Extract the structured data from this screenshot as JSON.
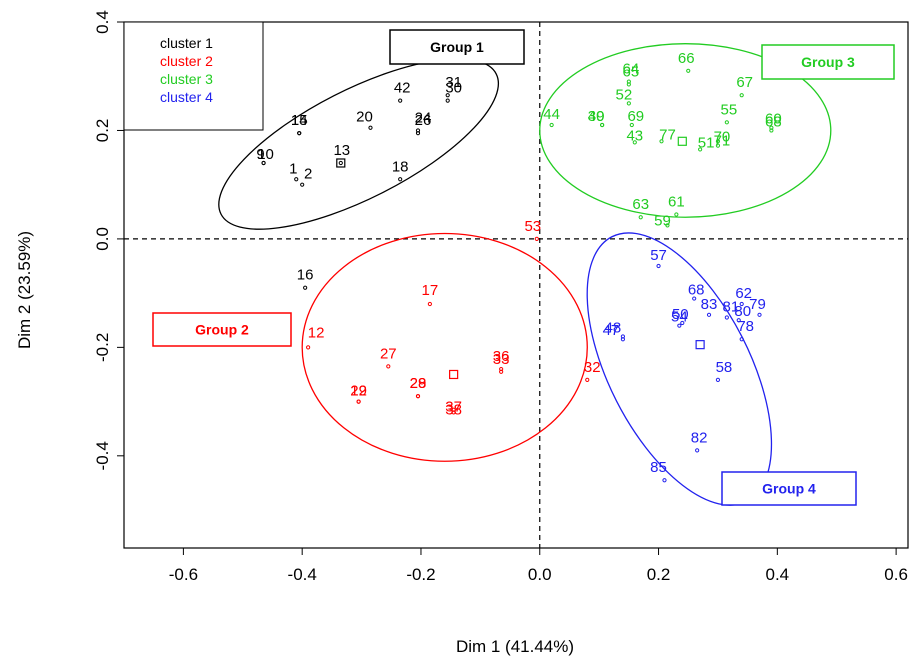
{
  "chart_data": {
    "type": "scatter",
    "xlabel": "Dim 1 (41.44%)",
    "ylabel": "Dim 2 (23.59%)",
    "xlim": [
      -0.7,
      0.62
    ],
    "ylim": [
      -0.57,
      0.4
    ],
    "xticks": [
      -0.6,
      -0.4,
      -0.2,
      0.0,
      0.2,
      0.4,
      0.6
    ],
    "xtick_labels": [
      "-0.6",
      "-0.4",
      "-0.2",
      "0.0",
      "0.2",
      "0.4",
      "0.6"
    ],
    "yticks": [
      -0.4,
      -0.2,
      0.0,
      0.2,
      0.4
    ],
    "ytick_labels": [
      "-0.4",
      "-0.2",
      "0.0",
      "0.2",
      "0.4"
    ],
    "reference_lines": {
      "x": 0.0,
      "y": 0.0
    },
    "legend": {
      "placement": "top-left",
      "entries": [
        {
          "label": "cluster 1",
          "color": "#000000"
        },
        {
          "label": "cluster 2",
          "color": "#ff0000"
        },
        {
          "label": "cluster 3",
          "color": "#22cc22"
        },
        {
          "label": "cluster 4",
          "color": "#2222ee"
        }
      ]
    },
    "series": [
      {
        "cluster": 1,
        "color": "#000000",
        "center": [
          -0.335,
          0.14
        ],
        "ellipse": {
          "cx": -0.305,
          "cy": 0.175,
          "rx": 0.26,
          "ry": 0.1,
          "angle_deg": 27
        },
        "points": [
          {
            "label": "42",
            "x": -0.235,
            "y": 0.255
          },
          {
            "label": "30",
            "x": -0.155,
            "y": 0.255
          },
          {
            "label": "31",
            "x": -0.155,
            "y": 0.265
          },
          {
            "label": "20",
            "x": -0.285,
            "y": 0.205
          },
          {
            "label": "26",
            "x": -0.205,
            "y": 0.195
          },
          {
            "label": "24",
            "x": -0.205,
            "y": 0.2
          },
          {
            "label": "15",
            "x": -0.405,
            "y": 0.195
          },
          {
            "label": "14",
            "x": -0.405,
            "y": 0.195
          },
          {
            "label": "13",
            "x": -0.335,
            "y": 0.14
          },
          {
            "label": "10",
            "x": -0.465,
            "y": 0.14
          },
          {
            "label": "9",
            "x": -0.465,
            "y": 0.14
          },
          {
            "label": "1",
            "x": -0.41,
            "y": 0.11
          },
          {
            "label": "2",
            "x": -0.4,
            "y": 0.1
          },
          {
            "label": "18",
            "x": -0.235,
            "y": 0.11
          },
          {
            "label": "16",
            "x": -0.395,
            "y": -0.09
          }
        ]
      },
      {
        "cluster": 2,
        "color": "#ff0000",
        "center": [
          -0.145,
          -0.25
        ],
        "ellipse": {
          "cx": -0.16,
          "cy": -0.2,
          "rx": 0.24,
          "ry": 0.21,
          "angle_deg": 0
        },
        "points": [
          {
            "label": "53",
            "x": -0.005,
            "y": 0.0
          },
          {
            "label": "17",
            "x": -0.185,
            "y": -0.12
          },
          {
            "label": "12",
            "x": -0.39,
            "y": -0.2
          },
          {
            "label": "27",
            "x": -0.255,
            "y": -0.235
          },
          {
            "label": "36",
            "x": -0.065,
            "y": -0.24
          },
          {
            "label": "33",
            "x": -0.065,
            "y": -0.245
          },
          {
            "label": "32",
            "x": 0.08,
            "y": -0.26
          },
          {
            "label": "19",
            "x": -0.305,
            "y": -0.3
          },
          {
            "label": "22",
            "x": -0.305,
            "y": -0.3
          },
          {
            "label": "29",
            "x": -0.205,
            "y": -0.29
          },
          {
            "label": "28",
            "x": -0.205,
            "y": -0.29
          },
          {
            "label": "38",
            "x": -0.145,
            "y": -0.32
          },
          {
            "label": "37",
            "x": -0.145,
            "y": -0.315
          }
        ]
      },
      {
        "cluster": 3,
        "color": "#22cc22",
        "center": [
          0.24,
          0.18
        ],
        "ellipse": {
          "cx": 0.245,
          "cy": 0.2,
          "rx": 0.245,
          "ry": 0.16,
          "angle_deg": 0
        },
        "points": [
          {
            "label": "66",
            "x": 0.25,
            "y": 0.31
          },
          {
            "label": "64",
            "x": 0.15,
            "y": 0.29
          },
          {
            "label": "65",
            "x": 0.15,
            "y": 0.285
          },
          {
            "label": "67",
            "x": 0.34,
            "y": 0.265
          },
          {
            "label": "52",
            "x": 0.15,
            "y": 0.25
          },
          {
            "label": "44",
            "x": 0.02,
            "y": 0.21
          },
          {
            "label": "39",
            "x": 0.105,
            "y": 0.21
          },
          {
            "label": "40",
            "x": 0.105,
            "y": 0.21
          },
          {
            "label": "69",
            "x": 0.155,
            "y": 0.21
          },
          {
            "label": "55",
            "x": 0.315,
            "y": 0.215
          },
          {
            "label": "60",
            "x": 0.39,
            "y": 0.205
          },
          {
            "label": "68",
            "x": 0.39,
            "y": 0.2
          },
          {
            "label": "43",
            "x": 0.16,
            "y": 0.178
          },
          {
            "label": "77",
            "x": 0.205,
            "y": 0.18
          },
          {
            "label": "51",
            "x": 0.27,
            "y": 0.165
          },
          {
            "label": "70",
            "x": 0.3,
            "y": 0.18
          },
          {
            "label": "71",
            "x": 0.3,
            "y": 0.172
          },
          {
            "label": "63",
            "x": 0.17,
            "y": 0.04
          },
          {
            "label": "61",
            "x": 0.23,
            "y": 0.045
          },
          {
            "label": "59",
            "x": 0.215,
            "y": 0.025
          }
        ]
      },
      {
        "cluster": 4,
        "color": "#2222ee",
        "center": [
          0.27,
          -0.195
        ],
        "ellipse": {
          "cx": 0.235,
          "cy": -0.24,
          "rx": 0.25,
          "ry": 0.13,
          "angle_deg": -63
        },
        "points": [
          {
            "label": "57",
            "x": 0.2,
            "y": -0.05
          },
          {
            "label": "68",
            "x": 0.26,
            "y": -0.11
          },
          {
            "label": "62",
            "x": 0.34,
            "y": -0.12
          },
          {
            "label": "79",
            "x": 0.37,
            "y": -0.14
          },
          {
            "label": "83",
            "x": 0.285,
            "y": -0.14
          },
          {
            "label": "81",
            "x": 0.315,
            "y": -0.145
          },
          {
            "label": "80",
            "x": 0.335,
            "y": -0.15
          },
          {
            "label": "54",
            "x": 0.235,
            "y": -0.16
          },
          {
            "label": "50",
            "x": 0.24,
            "y": -0.155
          },
          {
            "label": "47",
            "x": 0.14,
            "y": -0.185
          },
          {
            "label": "48",
            "x": 0.14,
            "y": -0.18
          },
          {
            "label": "78",
            "x": 0.34,
            "y": -0.185
          },
          {
            "label": "58",
            "x": 0.3,
            "y": -0.26
          },
          {
            "label": "82",
            "x": 0.265,
            "y": -0.39
          },
          {
            "label": "85",
            "x": 0.21,
            "y": -0.445
          }
        ]
      }
    ],
    "annotations": [
      {
        "text": "Group 1",
        "color": "#000000"
      },
      {
        "text": "Group 2",
        "color": "#ff0000"
      },
      {
        "text": "Group 3",
        "color": "#22cc22"
      },
      {
        "text": "Group 4",
        "color": "#2222ee"
      }
    ]
  }
}
